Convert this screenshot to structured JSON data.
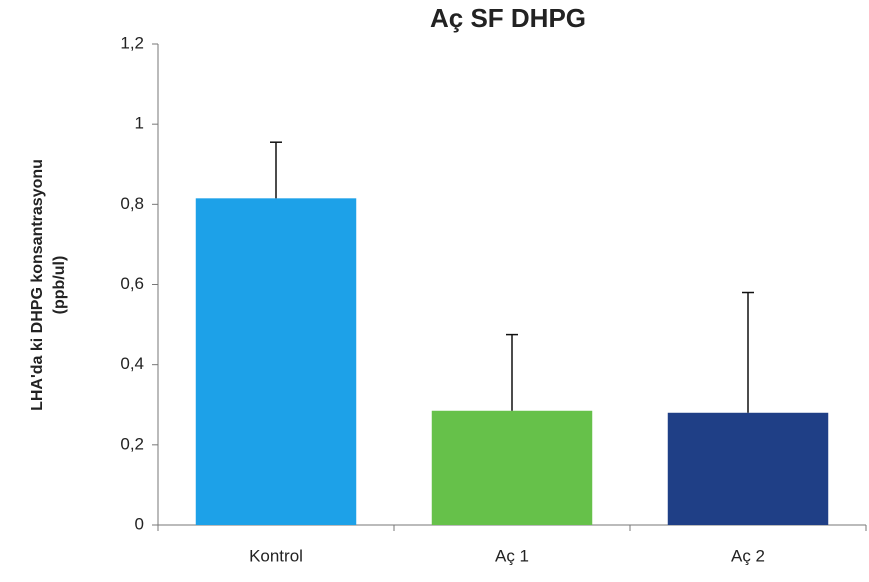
{
  "chart_data": {
    "type": "bar",
    "title": "Aç SF DHPG",
    "ylabel": [
      "LHA'da ki DHPG konsantrasyonu",
      "(ppb/ul)"
    ],
    "categories": [
      "Kontrol",
      "Aç 1",
      "Aç 2"
    ],
    "values": [
      0.815,
      0.285,
      0.28
    ],
    "errors": [
      0.14,
      0.19,
      0.3
    ],
    "colors": [
      "#1da1e8",
      "#66c14a",
      "#1f3f86"
    ],
    "ylim": [
      0,
      1.2
    ],
    "yticks": [
      0,
      {
        "value": 0.2,
        "label": "0,2"
      },
      {
        "value": 0.4,
        "label": "0,4"
      },
      {
        "value": 0.6,
        "label": "0,6"
      },
      {
        "value": 0.8,
        "label": "0,8"
      },
      1,
      {
        "value": 1.2,
        "label": "1,2"
      }
    ],
    "grid": false
  }
}
